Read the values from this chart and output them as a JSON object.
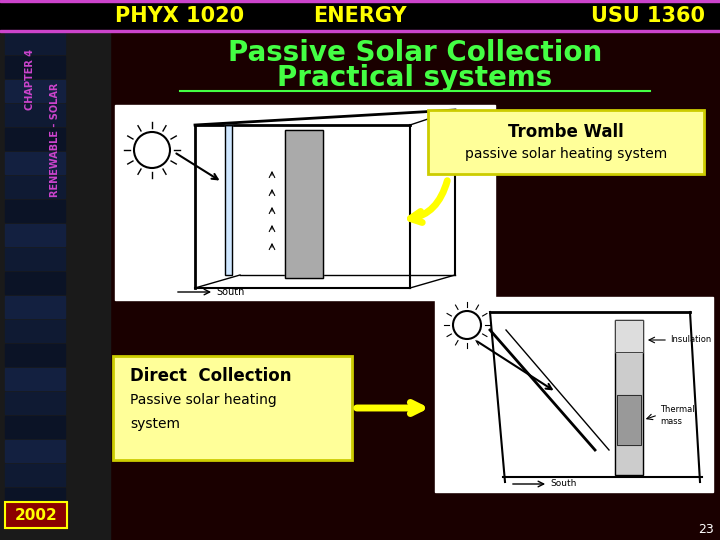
{
  "bg_color": "#1a0000",
  "header_bar_color": "#000000",
  "header_line_color": "#cc44cc",
  "phyx_text": "PHYX 1020",
  "energy_text": "ENERGY",
  "usu_text": "USU 1360",
  "header_text_color": "#ffff00",
  "sidebar_text1": "CHAPTER 4",
  "sidebar_text2": "RENEWABLE - SOLAR",
  "sidebar_color": "#cc44cc",
  "title_line1": "Passive Solar Collection",
  "title_line2": "Practical systems",
  "title_color": "#44ff44",
  "trombe_box_bg": "#ffff99",
  "trombe_box_border": "#cccc00",
  "trombe_text1": "Trombe Wall",
  "trombe_text2": "passive solar heating system",
  "trombe_text_color": "#000000",
  "direct_box_bg": "#ffff99",
  "direct_box_border": "#cccc00",
  "direct_text1": "Direct  Collection",
  "direct_text2": "Passive solar heating",
  "direct_text3": "system",
  "direct_text_color": "#000000",
  "arrow_color": "#ffff00",
  "year_text": "2002",
  "year_box_color": "#8b0000",
  "year_text_color": "#ffff00",
  "page_num": "23",
  "page_num_color": "#ffffff"
}
